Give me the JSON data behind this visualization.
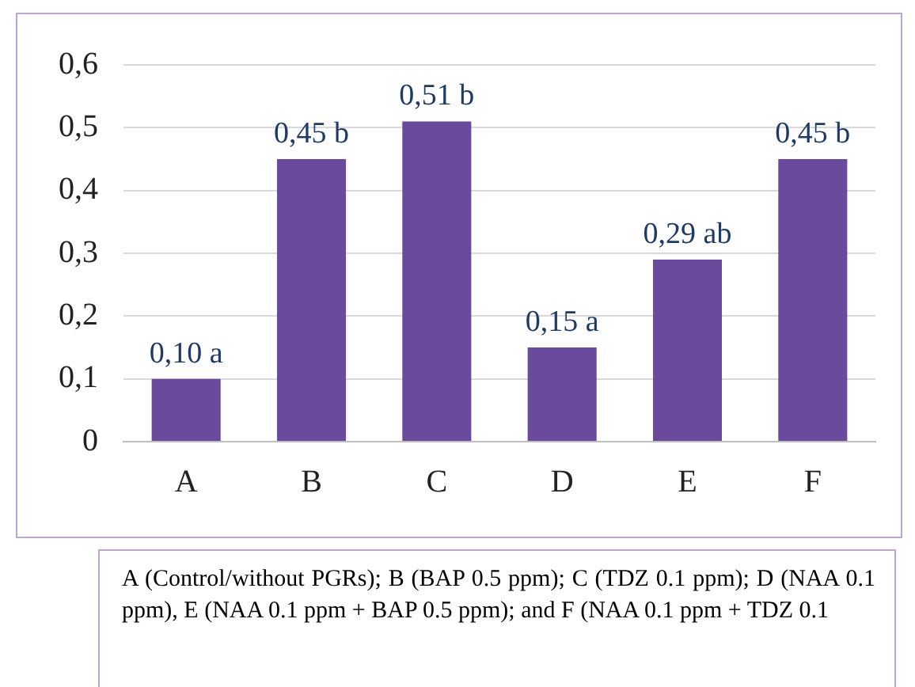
{
  "chart_data": {
    "type": "bar",
    "categories": [
      "A",
      "B",
      "C",
      "D",
      "E",
      "F"
    ],
    "values": [
      0.1,
      0.45,
      0.51,
      0.15,
      0.29,
      0.45
    ],
    "value_labels": [
      "0,10 a",
      "0,45 b",
      "0,51 b",
      "0,15 a",
      "0,29 ab",
      "0,45 b"
    ],
    "color": "#6a4a9c",
    "ylim": [
      0,
      0.6
    ],
    "yticks": [
      {
        "value": 0,
        "label": "0"
      },
      {
        "value": 0.1,
        "label": "0,1"
      },
      {
        "value": 0.2,
        "label": "0,2"
      },
      {
        "value": 0.3,
        "label": "0,3"
      },
      {
        "value": 0.4,
        "label": "0,4"
      },
      {
        "value": 0.5,
        "label": "0,5"
      },
      {
        "value": 0.6,
        "label": "0,6"
      }
    ],
    "grid": "y",
    "legend": false,
    "annotations": [
      "A (Control/without PGRs); B (BAP 0.5 ppm); C (TDZ 0.1 ppm); D (NAA 0.1 ppm), E (NAA 0.1 ppm + BAP 0.5 ppm); and F (NAA 0.1 ppm + TDZ 0.1"
    ]
  }
}
